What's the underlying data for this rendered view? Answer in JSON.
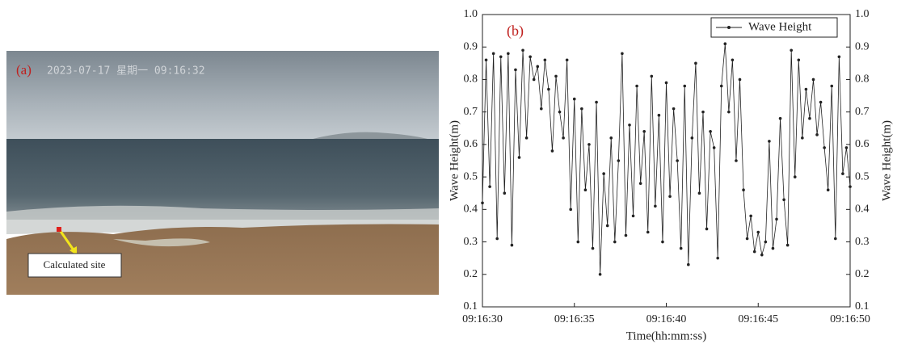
{
  "photo": {
    "label": "(a)",
    "timestamp": "2023-07-17 星期一 09:16:32",
    "site_label": "Calculated site"
  },
  "chart_data": {
    "type": "line",
    "panel_label": "(b)",
    "xlabel": "Time(hh:mm:ss)",
    "ylabel": "Wave Height(m)",
    "y2label": "Wave Height(m)",
    "xlim": [
      33390,
      33410
    ],
    "xticks": [
      {
        "value": 33390,
        "label": "09:16:30"
      },
      {
        "value": 33395,
        "label": "09:16:35"
      },
      {
        "value": 33400,
        "label": "09:16:40"
      },
      {
        "value": 33405,
        "label": "09:16:45"
      },
      {
        "value": 33410,
        "label": "09:16:50"
      }
    ],
    "ylim": [
      0.1,
      1
    ],
    "yticks": [
      0.1,
      0.2,
      0.3,
      0.4,
      0.5,
      0.6,
      0.7,
      0.8,
      0.9,
      {
        "value": 1,
        "label": "1.0"
      }
    ],
    "y2lim": [
      0.1,
      1
    ],
    "y2ticks": [
      0.1,
      0.2,
      0.3,
      0.4,
      0.5,
      0.6,
      0.7,
      0.8,
      0.9,
      {
        "value": 1,
        "label": "1.0"
      }
    ],
    "legend": "upper right",
    "x": [
      33390,
      33390.2,
      33390.4,
      33390.6,
      33390.8,
      33391,
      33391.2,
      33391.4,
      33391.6,
      33391.8,
      33392,
      33392.2,
      33392.4,
      33392.6,
      33392.8,
      33393,
      33393.2,
      33393.4,
      33393.6,
      33393.8,
      33394,
      33394.2,
      33394.4,
      33394.6,
      33394.8,
      33395,
      33395.2,
      33395.4,
      33395.6,
      33395.8,
      33396,
      33396.2,
      33396.4,
      33396.6,
      33396.8,
      33397,
      33397.2,
      33397.4,
      33397.6,
      33397.8,
      33398,
      33398.2,
      33398.4,
      33398.6,
      33398.8,
      33399,
      33399.2,
      33399.4,
      33399.6,
      33399.8,
      33400,
      33400.2,
      33400.4,
      33400.6,
      33400.8,
      33401,
      33401.2,
      33401.4,
      33401.6,
      33401.8,
      33402,
      33402.2,
      33402.4,
      33402.6,
      33402.8,
      33403,
      33403.2,
      33403.4,
      33403.6,
      33403.8,
      33404,
      33404.2,
      33404.4,
      33404.6,
      33404.8,
      33405,
      33405.2,
      33405.4,
      33405.6,
      33405.8,
      33406,
      33406.2,
      33406.4,
      33406.6,
      33406.8,
      33407,
      33407.2,
      33407.4,
      33407.6,
      33407.8,
      33408,
      33408.2,
      33408.4,
      33408.6,
      33408.8,
      33409,
      33409.2,
      33409.4,
      33409.6,
      33409.8,
      33410
    ],
    "series": [
      {
        "name": "Wave Height",
        "color": "#222222",
        "values": [
          0.42,
          0.86,
          0.47,
          0.88,
          0.31,
          0.87,
          0.45,
          0.88,
          0.29,
          0.83,
          0.56,
          0.89,
          0.62,
          0.87,
          0.8,
          0.84,
          0.71,
          0.86,
          0.77,
          0.58,
          0.81,
          0.7,
          0.62,
          0.86,
          0.4,
          0.74,
          0.3,
          0.71,
          0.46,
          0.6,
          0.28,
          0.73,
          0.2,
          0.51,
          0.35,
          0.62,
          0.3,
          0.55,
          0.88,
          0.32,
          0.66,
          0.38,
          0.78,
          0.48,
          0.64,
          0.33,
          0.81,
          0.41,
          0.69,
          0.3,
          0.79,
          0.44,
          0.71,
          0.55,
          0.28,
          0.78,
          0.23,
          0.62,
          0.85,
          0.45,
          0.7,
          0.34,
          0.64,
          0.59,
          0.25,
          0.78,
          0.91,
          0.7,
          0.86,
          0.55,
          0.8,
          0.46,
          0.31,
          0.38,
          0.27,
          0.33,
          0.26,
          0.3,
          0.61,
          0.28,
          0.37,
          0.68,
          0.43,
          0.29,
          0.89,
          0.5,
          0.86,
          0.62,
          0.77,
          0.68,
          0.8,
          0.63,
          0.73,
          0.59,
          0.46,
          0.78,
          0.31,
          0.87,
          0.51,
          0.59,
          0.47
        ]
      }
    ]
  }
}
